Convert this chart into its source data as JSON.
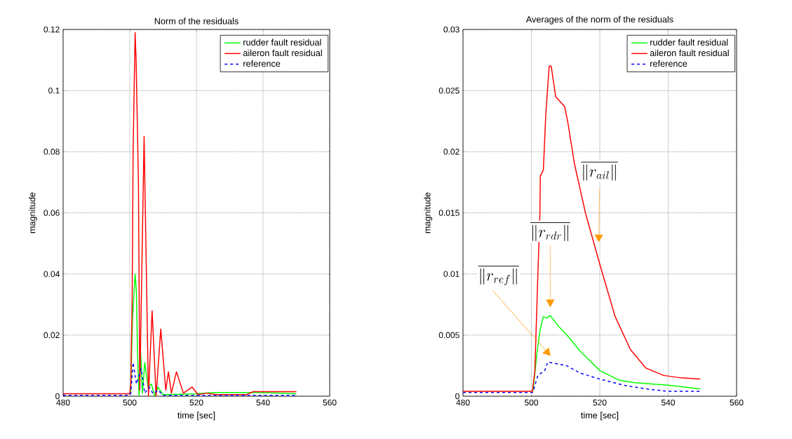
{
  "chart_data": [
    {
      "type": "line",
      "title": "Norm of the residuals",
      "xlabel": "time [sec]",
      "ylabel": "magnitude",
      "xlim": [
        480,
        560
      ],
      "xticks": [
        480,
        500,
        520,
        540,
        560
      ],
      "ylim": [
        0,
        0.12
      ],
      "yticks": [
        0,
        0.02,
        0.04,
        0.06,
        0.08,
        0.1,
        0.12
      ],
      "grid": true,
      "legend": "top right",
      "marker": "none",
      "series": [
        {
          "name": "rudder fault residual",
          "color": "#00ff00",
          "line_style": "solid",
          "x": [
            500,
            500.3,
            500.8,
            501.6,
            502.0,
            502.3,
            502.8,
            503.3,
            503.8,
            504.5,
            505.5,
            506.5,
            507.5,
            508.5,
            510,
            520,
            525,
            540,
            550
          ],
          "values": [
            0.0008,
            0.002,
            0.025,
            0.04,
            0.034,
            0.015,
            0.0,
            0.014,
            0.001,
            0.011,
            0.003,
            0.004,
            0.0,
            0.003,
            0.0005,
            0.0008,
            0.0012,
            0.0012,
            0.0008
          ]
        },
        {
          "name": "aileron fault residual",
          "color": "#ff0000",
          "line_style": "solid",
          "x": [
            480,
            500,
            500.3,
            500.7,
            501.0,
            501.6,
            501.9,
            502.6,
            503.0,
            504.3,
            505.6,
            506.7,
            507.9,
            509.3,
            510.8,
            511.6,
            512.5,
            514.0,
            516.1,
            518.7,
            520.5,
            523,
            526,
            535,
            537,
            550
          ],
          "values": [
            0.0008,
            0.0008,
            0.004,
            0.03,
            0.08,
            0.119,
            0.11,
            0.07,
            0.002,
            0.085,
            0.0,
            0.028,
            0.0,
            0.022,
            0.002,
            0.008,
            0.001,
            0.008,
            0.001,
            0.003,
            0.0005,
            0.001,
            0.0005,
            0.0005,
            0.0015,
            0.0015
          ]
        },
        {
          "name": "reference",
          "color": "#0000ff",
          "line_style": "dashed",
          "x": [
            480,
            500,
            500.3,
            501.0,
            502.0,
            503.4,
            504.5,
            505.8,
            507.0,
            508.5,
            510,
            550
          ],
          "values": [
            0.0003,
            0.0003,
            0.001,
            0.011,
            0.004,
            0.009,
            0.001,
            0.003,
            0.0008,
            0.002,
            0.0003,
            0.0003
          ]
        }
      ]
    },
    {
      "type": "line",
      "title": "Averages of the norm of the residuals",
      "xlabel": "time [sec]",
      "ylabel": "magnitude",
      "xlim": [
        480,
        560
      ],
      "xticks": [
        480,
        500,
        520,
        540,
        560
      ],
      "ylim": [
        0,
        0.03
      ],
      "yticks": [
        0,
        0.005,
        0.01,
        0.015,
        0.02,
        0.025,
        0.03
      ],
      "grid": true,
      "legend": "top right",
      "marker": "none",
      "series": [
        {
          "name": "rudder fault residual",
          "color": "#00ff00",
          "line_style": "solid",
          "x": [
            500.3,
            500.5,
            501.6,
            502.6,
            503.5,
            504.5,
            505.5,
            507.7,
            511,
            514.2,
            520,
            525.8,
            530.3,
            540,
            549.4
          ],
          "values": [
            0.0004,
            0.0005,
            0.0035,
            0.0055,
            0.0065,
            0.0064,
            0.0066,
            0.0058,
            0.0048,
            0.0037,
            0.0021,
            0.0013,
            0.0011,
            0.0009,
            0.0006
          ]
        },
        {
          "name": "aileron fault residual",
          "color": "#ff0000",
          "line_style": "solid",
          "x": [
            480,
            500.3,
            501.0,
            501.9,
            502.5,
            502.6,
            503.5,
            504.2,
            505.2,
            505.8,
            507.1,
            509.7,
            510.6,
            512.6,
            515.8,
            520,
            524.5,
            529,
            533.5,
            538.7,
            543.9,
            549.4
          ],
          "values": [
            0.0004,
            0.0004,
            0.002,
            0.01,
            0.015,
            0.018,
            0.0185,
            0.023,
            0.027,
            0.027,
            0.0245,
            0.0237,
            0.0225,
            0.019,
            0.015,
            0.0108,
            0.0065,
            0.0038,
            0.0023,
            0.0017,
            0.0015,
            0.0014
          ]
        },
        {
          "name": "reference",
          "color": "#0000ff",
          "line_style": "dashed",
          "x": [
            480,
            500.3,
            500.5,
            501.9,
            503.9,
            504.8,
            506.5,
            510.3,
            514.2,
            520,
            527,
            533.5,
            540,
            549.4
          ],
          "values": [
            0.0003,
            0.0003,
            0.0004,
            0.0017,
            0.0021,
            0.0028,
            0.0027,
            0.0025,
            0.0019,
            0.0014,
            0.0009,
            0.0006,
            0.0004,
            0.0004
          ]
        }
      ],
      "annotations": [
        "\\overline{\\left\\| r_{ail} \\right\\|}",
        "\\overline{\\left\\| r_{rdr} \\right\\|}",
        "\\overline{\\left\\| r_{ref} \\right\\|}"
      ]
    }
  ]
}
